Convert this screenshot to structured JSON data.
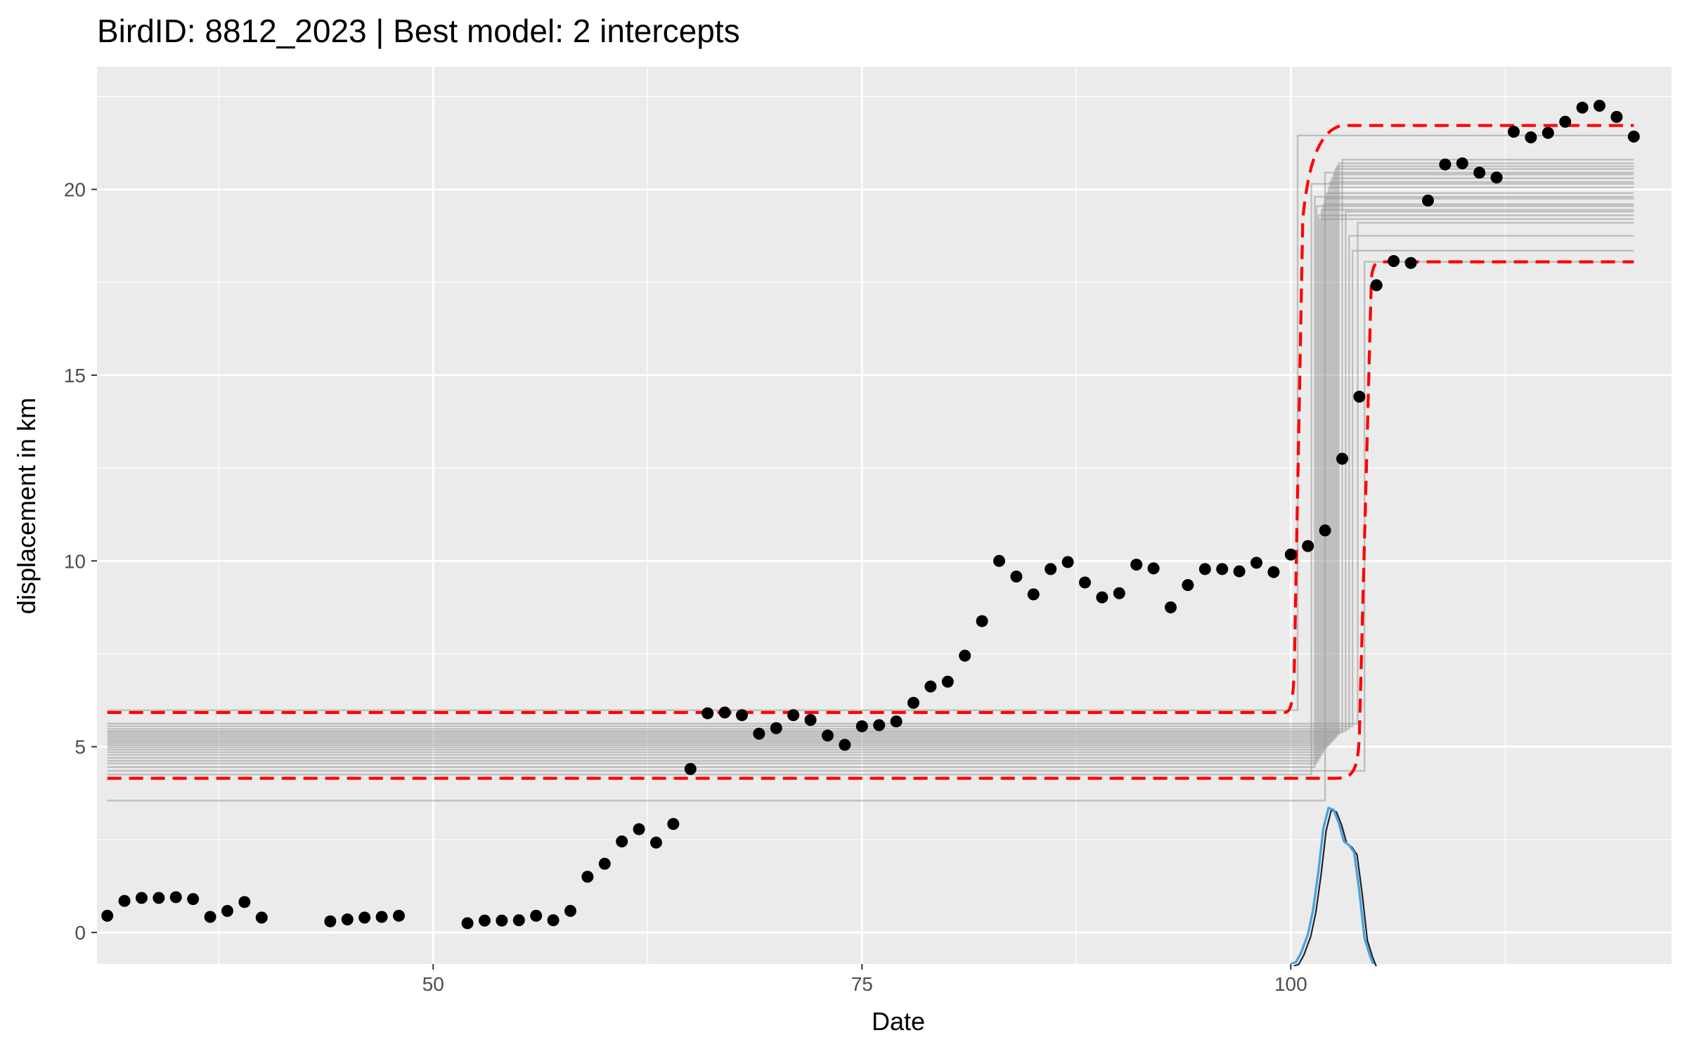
{
  "chart_data": {
    "type": "scatter",
    "title": "BirdID: 8812_2023 | Best model: 2 intercepts",
    "xlabel": "Date",
    "ylabel": "displacement in km",
    "xlim": [
      30.4,
      122.2
    ],
    "ylim": [
      -0.85,
      23.3
    ],
    "x_ticks": [
      50,
      75,
      100
    ],
    "y_ticks": [
      0,
      5,
      10,
      15,
      20
    ],
    "grid": true,
    "colors": {
      "panel": "#ebebeb",
      "grid": "#ffffff",
      "points": "#000000",
      "envelope": "#ff0000",
      "bootstrap_lines": "#999999",
      "density": "#4aa3df"
    },
    "series": [
      {
        "type": "scatter",
        "x": [
          31,
          32,
          33,
          34,
          35,
          36,
          37,
          38,
          39,
          40,
          44,
          45,
          46,
          47,
          48,
          52,
          53,
          54,
          55,
          56,
          57,
          58,
          59,
          60,
          61,
          62,
          63,
          64,
          65,
          66,
          67,
          68,
          69,
          70,
          71,
          72,
          73,
          74,
          75,
          76,
          77,
          78,
          79,
          80,
          81,
          82,
          83,
          84,
          85,
          86,
          87,
          88,
          89,
          90,
          91,
          92,
          93,
          94,
          95,
          96,
          97,
          98,
          99,
          100,
          101,
          102,
          103,
          104,
          105,
          106,
          107,
          108,
          109,
          110,
          111,
          112,
          113,
          114,
          115,
          116,
          117,
          118,
          119,
          120
        ],
        "y": [
          0.45,
          0.85,
          0.93,
          0.93,
          0.95,
          0.9,
          0.42,
          0.58,
          0.82,
          0.4,
          0.3,
          0.35,
          0.4,
          0.42,
          0.45,
          0.25,
          0.32,
          0.32,
          0.33,
          0.45,
          0.33,
          0.58,
          1.5,
          1.85,
          2.45,
          2.78,
          2.42,
          2.92,
          4.4,
          5.9,
          5.92,
          5.85,
          5.35,
          5.5,
          5.85,
          5.72,
          5.3,
          5.05,
          5.55,
          5.58,
          5.68,
          6.18,
          6.62,
          6.75,
          7.45,
          8.38,
          10.0,
          9.58,
          9.1,
          9.78,
          9.97,
          9.42,
          9.02,
          9.13,
          9.9,
          9.8,
          8.75,
          9.35,
          9.78,
          9.78,
          9.72,
          9.95,
          9.7,
          10.17,
          10.4,
          10.82,
          12.75,
          14.42,
          17.42,
          18.07,
          18.02,
          19.7,
          20.67,
          20.7,
          20.45,
          20.32,
          21.55,
          21.4,
          21.52,
          21.82,
          22.2,
          22.25,
          21.95,
          21.42
        ]
      },
      {
        "type": "step_lines",
        "x_start": 31,
        "x_end": 120,
        "steps": [
          [
            4.25,
            20.15,
            101.2
          ],
          [
            4.45,
            19.8,
            101.4
          ],
          [
            4.55,
            19.55,
            101.5
          ],
          [
            4.62,
            19.3,
            101.6
          ],
          [
            4.7,
            19.2,
            101.7
          ],
          [
            4.78,
            19.45,
            101.8
          ],
          [
            4.85,
            19.6,
            101.9
          ],
          [
            4.92,
            19.75,
            102.0
          ],
          [
            4.98,
            19.9,
            102.1
          ],
          [
            5.03,
            20.05,
            102.2
          ],
          [
            5.08,
            20.2,
            102.3
          ],
          [
            5.13,
            20.3,
            102.4
          ],
          [
            5.18,
            20.4,
            102.5
          ],
          [
            5.23,
            20.55,
            102.6
          ],
          [
            5.28,
            20.62,
            102.7
          ],
          [
            5.33,
            20.7,
            102.8
          ],
          [
            5.38,
            20.8,
            103.0
          ],
          [
            5.42,
            19.4,
            103.2
          ],
          [
            5.48,
            18.75,
            103.4
          ],
          [
            5.55,
            18.35,
            103.6
          ],
          [
            5.62,
            19.1,
            103.9
          ],
          [
            3.55,
            20.45,
            102.0
          ],
          [
            5.98,
            21.45,
            100.4
          ],
          [
            4.35,
            18.05,
            104.3
          ]
        ]
      },
      {
        "type": "envelope",
        "lower": [
          4.15,
          18.05
        ],
        "upper": [
          5.92,
          21.72
        ]
      },
      {
        "type": "density",
        "x": [
          100.0,
          100.3,
          100.6,
          101.0,
          101.3,
          101.6,
          101.9,
          102.2,
          102.5,
          102.8,
          103.1,
          103.4,
          103.7,
          104.0,
          104.3,
          104.6,
          104.9
        ],
        "y": [
          -0.85,
          -0.8,
          -0.55,
          -0.05,
          0.6,
          1.6,
          2.8,
          3.35,
          3.3,
          2.95,
          2.45,
          2.35,
          2.15,
          1.1,
          -0.15,
          -0.6,
          -0.95
        ]
      }
    ]
  }
}
